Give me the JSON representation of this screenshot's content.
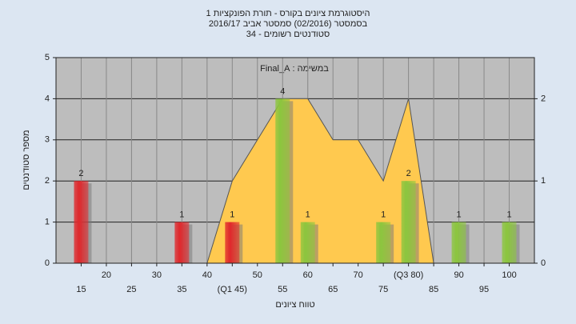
{
  "chart_data": {
    "type": "histogram",
    "title": [
      "היסטוגרמת ציונים בקורס - תורת הפונקציות 1",
      "בסמסטר  (02/2016)  סמסטר אביב 2016/17",
      "סטודנטים רשומים - 34"
    ],
    "annotation": "במשימה : Final_A",
    "y_label": "מספר סטודנטים",
    "x_label": "טווח ציונים",
    "xlim": [
      10,
      105
    ],
    "xticks": [
      15,
      20,
      25,
      30,
      35,
      40,
      {
        "value": 45,
        "label": "(Q1 45)"
      },
      50,
      55,
      60,
      65,
      70,
      75,
      {
        "value": 80,
        "label": "(Q3 80)"
      },
      85,
      90,
      95,
      100
    ],
    "ylim": [
      0,
      5
    ],
    "yticks": [
      0,
      1,
      2,
      3,
      4,
      5
    ],
    "y2lim": [
      0,
      2.5
    ],
    "y2ticks": [
      0,
      1,
      2
    ],
    "grid": true,
    "series": [
      {
        "type": "area",
        "axis": "y2",
        "color": "#ffc94f",
        "x": [
          40,
          45,
          50,
          55,
          60,
          65,
          70,
          75,
          80,
          85
        ],
        "values": [
          0,
          1,
          1.5,
          2,
          2,
          1.5,
          1.5,
          1,
          2,
          0
        ]
      },
      {
        "type": "bar",
        "x": [
          15,
          35,
          45,
          55,
          60,
          75,
          80,
          90,
          100
        ],
        "values": [
          2,
          1,
          1,
          4,
          1,
          1,
          2,
          1,
          1
        ],
        "colors": [
          "#e0282c",
          "#e0282c",
          "#e0282c",
          "#8cc63e",
          "#8cc63e",
          "#8cc63e",
          "#8cc63e",
          "#8cc63e",
          "#8cc63e"
        ]
      }
    ]
  }
}
